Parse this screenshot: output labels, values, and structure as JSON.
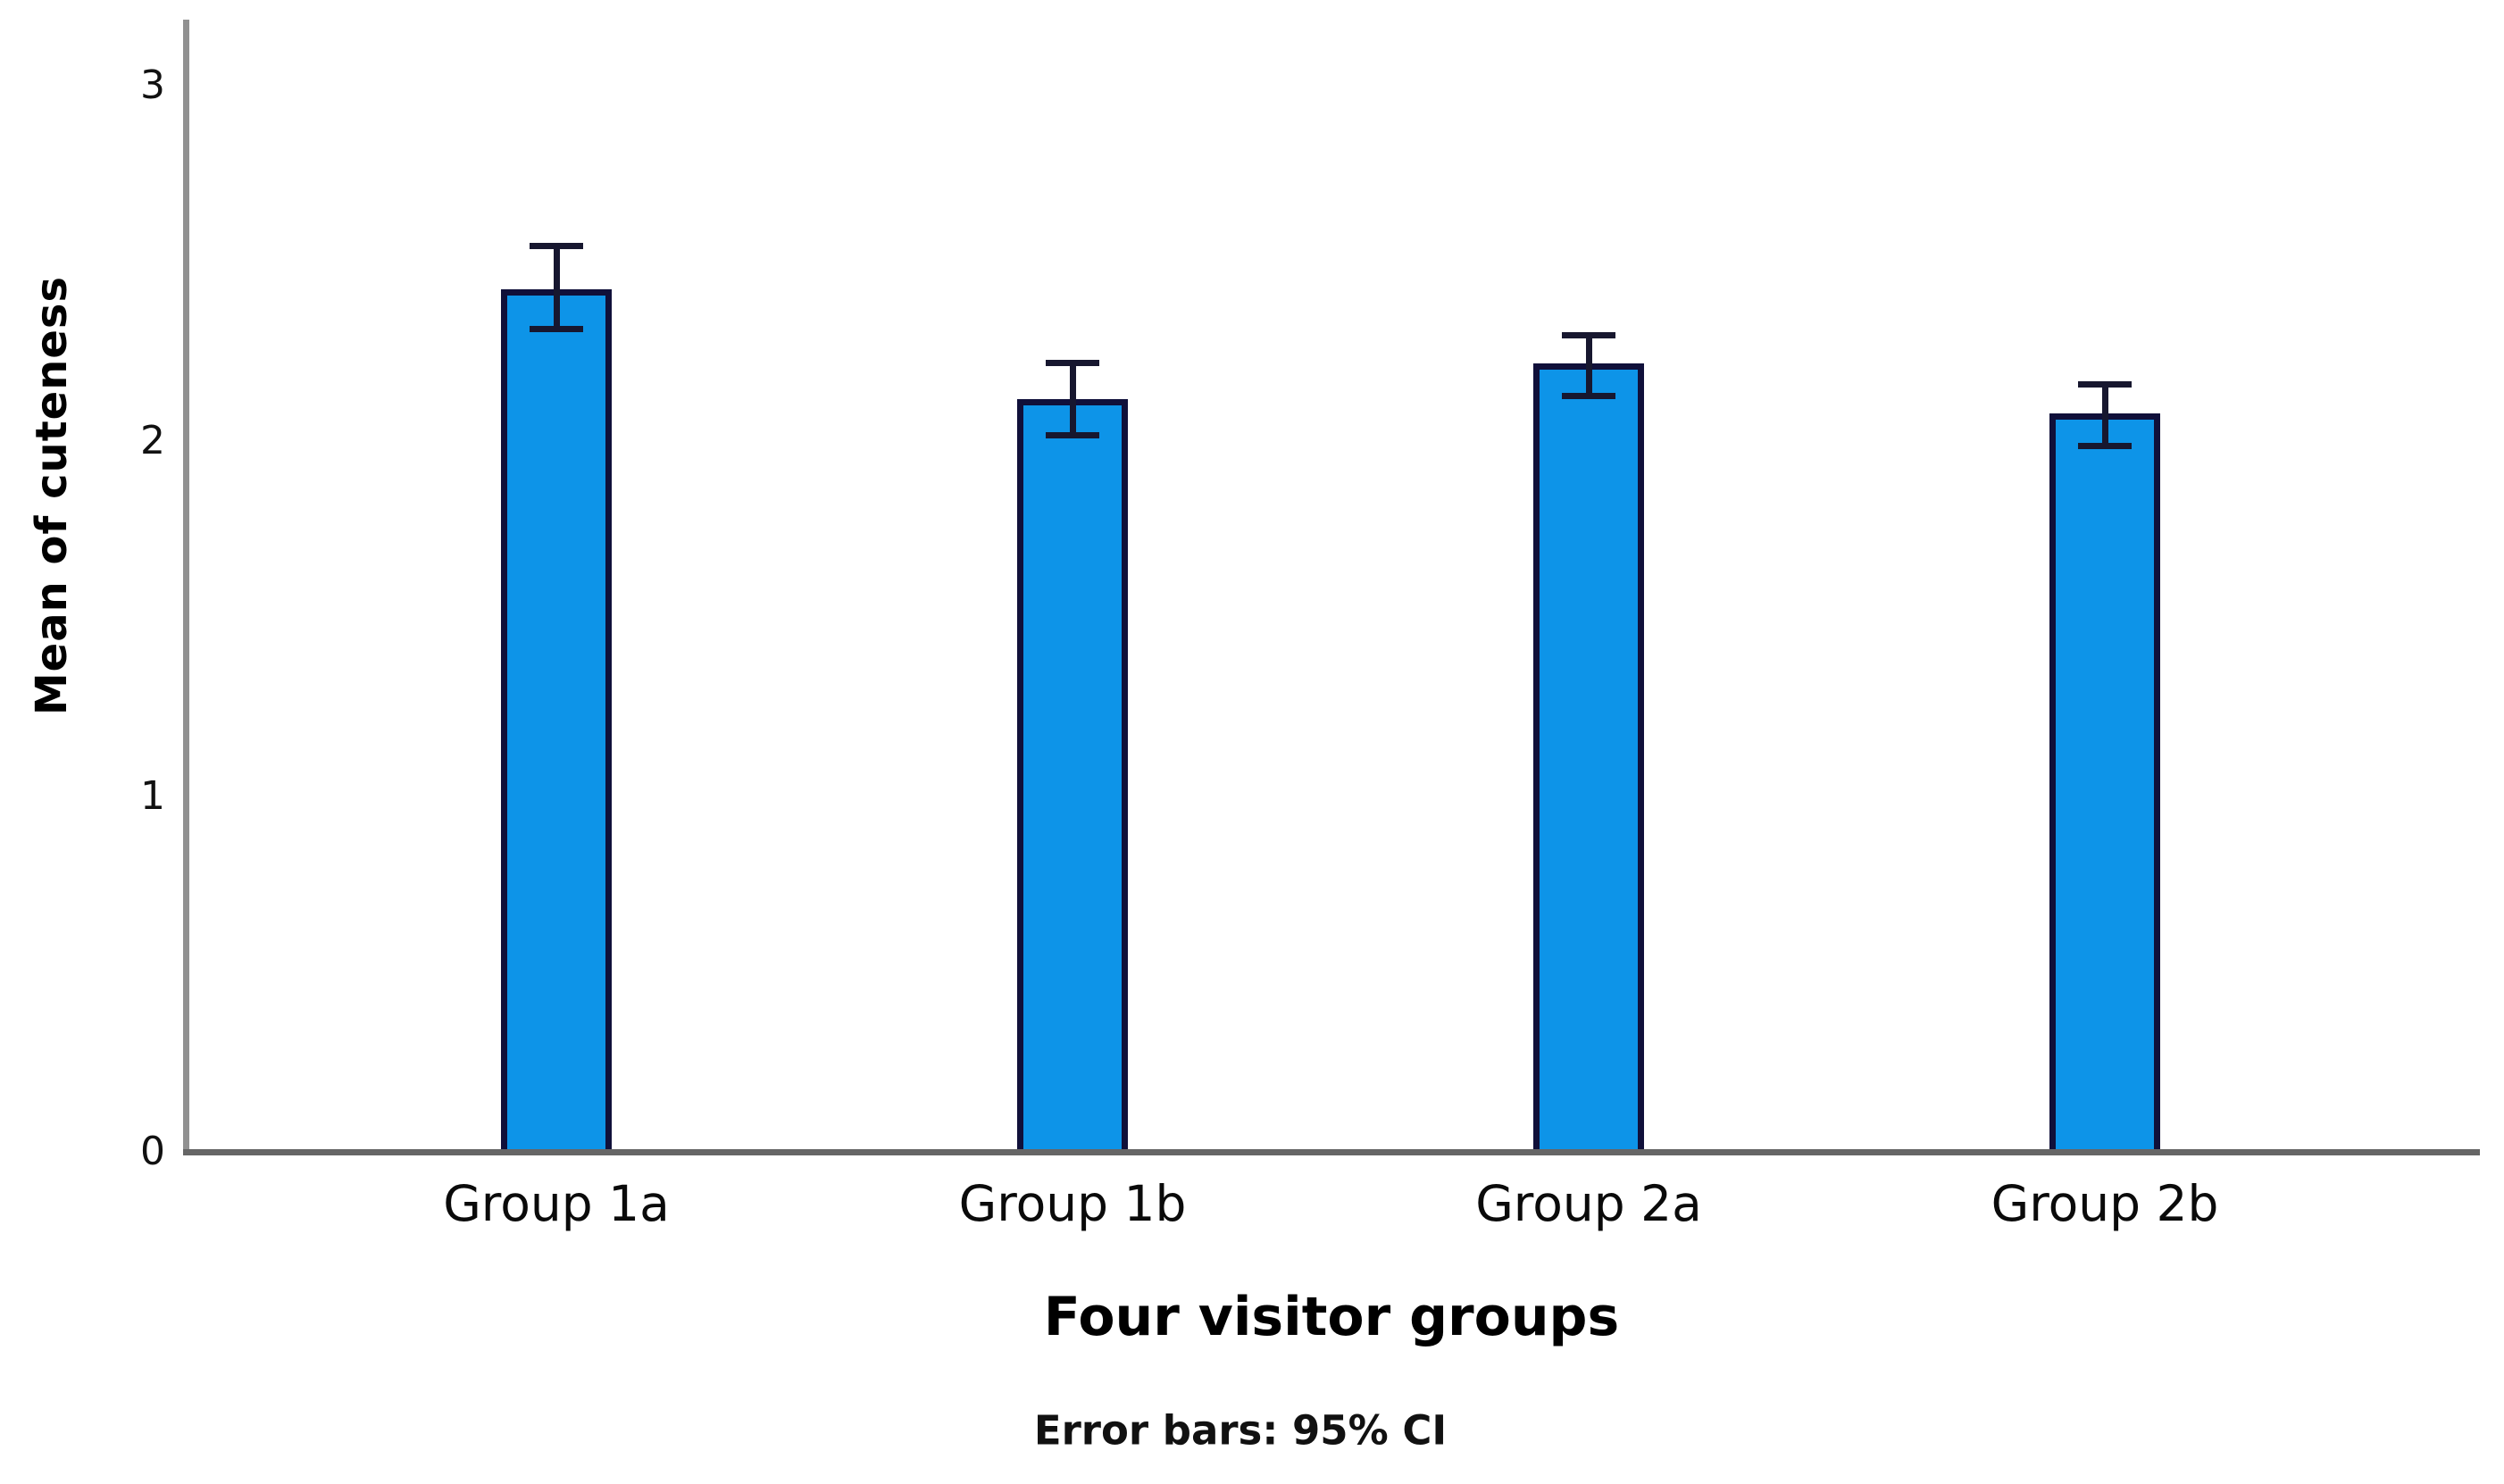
{
  "figure": {
    "background": "#ffffff"
  },
  "chart_data": {
    "type": "bar",
    "title": "",
    "xlabel": "Four visitor groups",
    "ylabel": "Mean of cuteness",
    "caption": "Error bars: 95% CI",
    "categories": [
      "Group 1a",
      "Group 1b",
      "Group 2a",
      "Group 2b"
    ],
    "values": [
      2.42,
      2.11,
      2.21,
      2.07
    ],
    "error_bars": {
      "kind": "95% CI",
      "lower": [
        2.3,
        2.0,
        2.11,
        1.97
      ],
      "upper": [
        2.55,
        2.22,
        2.3,
        2.16
      ]
    },
    "ylim": [
      0,
      3
    ],
    "yticks": [
      0,
      1,
      2,
      3
    ],
    "grid": false,
    "legend": false,
    "colors": {
      "bar_fill": "#0D94E8",
      "bar_border": "#10103A",
      "error_bar": "#17172F",
      "y_axis_line": "#919191",
      "x_axis_line": "#666666",
      "text": "#000000"
    }
  }
}
